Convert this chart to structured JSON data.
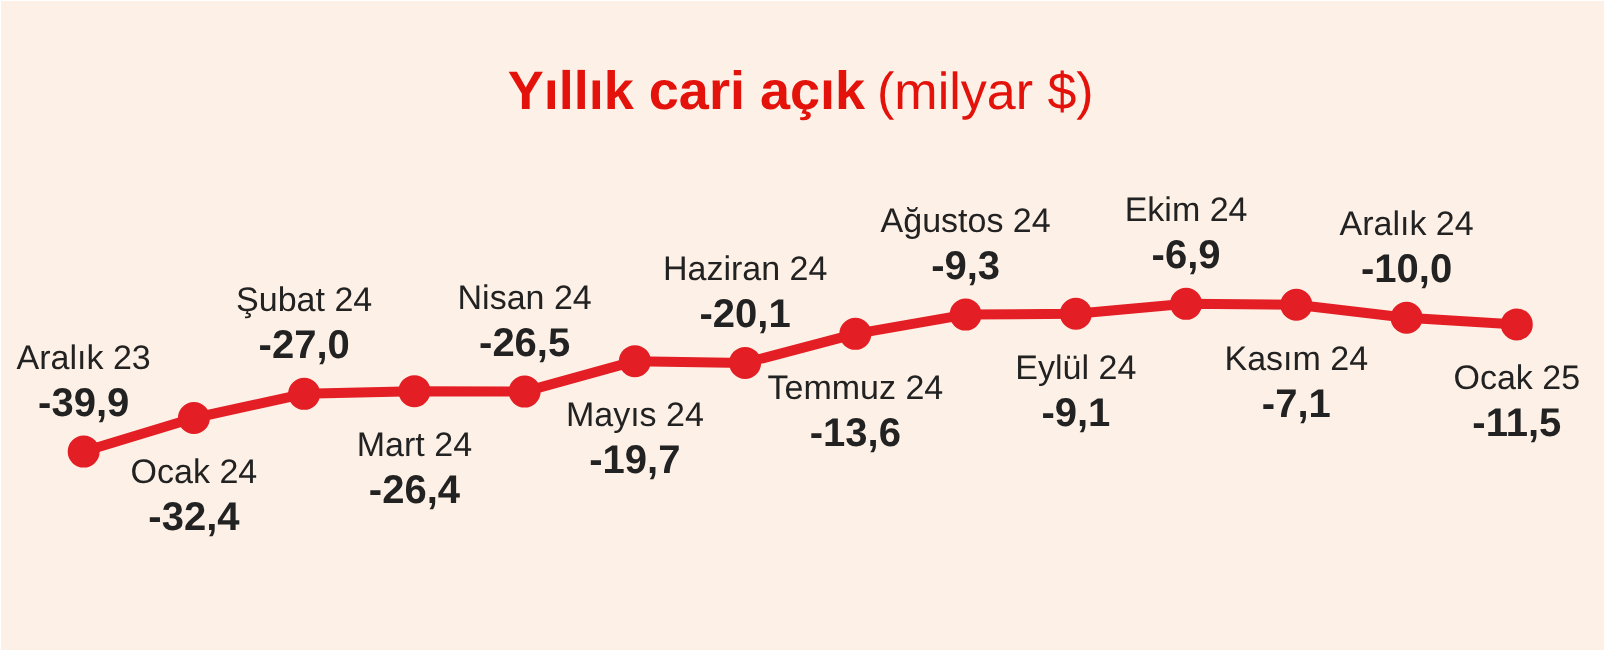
{
  "chart_data": {
    "type": "line",
    "title": "Yıllık cari açık",
    "subtitle": "(milyar $)",
    "categories": [
      "Aralık 23",
      "Ocak 24",
      "Şubat 24",
      "Mart 24",
      "Nisan 24",
      "Mayıs 24",
      "Haziran 24",
      "Temmuz 24",
      "Ağustos 24",
      "Eylül 24",
      "Ekim 24",
      "Kasım 24",
      "Aralık 24",
      "Ocak 25"
    ],
    "series": [
      {
        "color": "#e31e24",
        "values": [
          -39.9,
          -32.4,
          -27.0,
          -26.4,
          -26.5,
          -19.7,
          -20.1,
          -13.6,
          -9.3,
          -9.1,
          -6.9,
          -7.1,
          -10.0,
          -11.5
        ],
        "value_labels": [
          "-39,9",
          "-32,4",
          "-27,0",
          "-26,4",
          "-26,5",
          "-19,7",
          "-20,1",
          "-13,6",
          "-9,3",
          "-9,1",
          "-6,9",
          "-7,1",
          "-10,0",
          "-11,5"
        ]
      }
    ],
    "marker": "circle",
    "line_style": "solid"
  }
}
